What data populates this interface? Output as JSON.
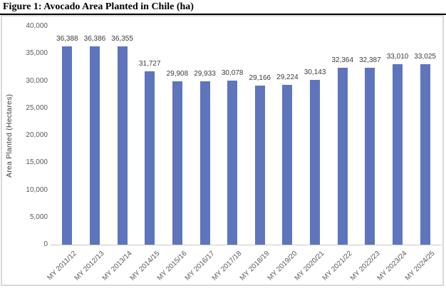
{
  "figure": {
    "title": "Figure 1: Avocado Area Planted in Chile (ha)"
  },
  "chart_data": {
    "type": "bar",
    "title": "Figure 1: Avocado Area Planted in Chile (ha)",
    "categories": [
      "MY 2011/12",
      "MY 2012/13",
      "MY 2013/14",
      "MY 2014/15",
      "MY 2015/16",
      "MY 2016/17",
      "MY 2017/18",
      "MY 2018/19",
      "MY 2019/20",
      "MY 2020/21",
      "MY 2021/22",
      "MY 2022/23",
      "MY 2023/24",
      "MY 2024/25"
    ],
    "values": [
      36388,
      36386,
      36355,
      31727,
      29908,
      29933,
      30078,
      29166,
      29224,
      30143,
      32364,
      32387,
      33010,
      33025
    ],
    "value_labels": [
      "36,388",
      "36,386",
      "36,355",
      "31,727",
      "29,908",
      "29,933",
      "30,078",
      "29,166",
      "29,224",
      "30,143",
      "32,364",
      "32,387",
      "33,010",
      "33,025"
    ],
    "xlabel": "",
    "ylabel": "Area Planted (Hectares)",
    "ylim": [
      0,
      40000
    ],
    "ytick_step": 5000,
    "ytick_labels": [
      "0",
      "5,000",
      "10,000",
      "15,000",
      "20,000",
      "25,000",
      "30,000",
      "35,000",
      "40,000"
    ],
    "grid": false,
    "legend": "none",
    "data_labels": true,
    "colors": {
      "bar": "#5E74BD",
      "axis_text": "#595959",
      "label_text": "#3b3b3b",
      "axis_line": "#c9c9c9",
      "chart_border": "#d9d9d9"
    }
  }
}
